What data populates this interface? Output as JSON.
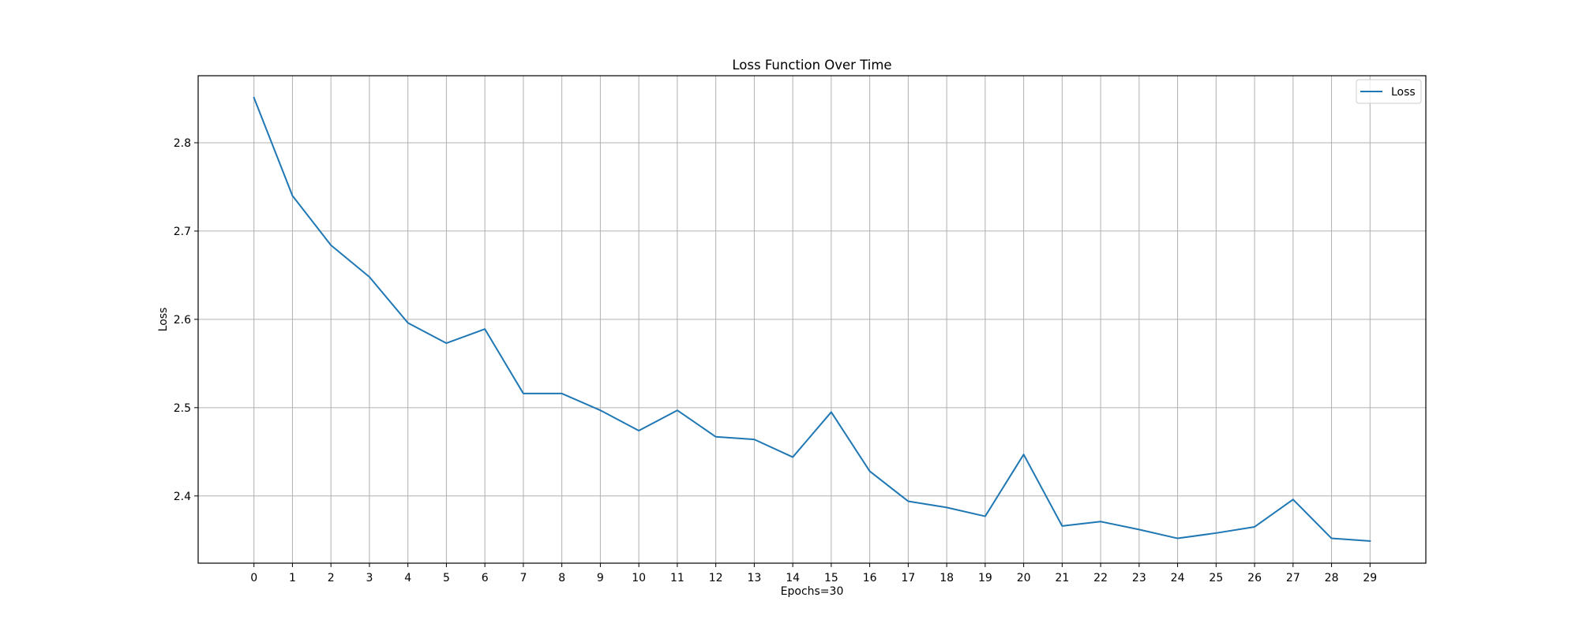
{
  "chart_data": {
    "type": "line",
    "title": "Loss Function Over Time",
    "xlabel": "Epochs=30",
    "ylabel": "Loss",
    "x": [
      0,
      1,
      2,
      3,
      4,
      5,
      6,
      7,
      8,
      9,
      10,
      11,
      12,
      13,
      14,
      15,
      16,
      17,
      18,
      19,
      20,
      21,
      22,
      23,
      24,
      25,
      26,
      27,
      28,
      29
    ],
    "series": [
      {
        "name": "Loss",
        "color": "#1f77b4",
        "values": [
          2.851,
          2.74,
          2.684,
          2.648,
          2.596,
          2.573,
          2.589,
          2.516,
          2.516,
          2.497,
          2.474,
          2.497,
          2.467,
          2.464,
          2.444,
          2.495,
          2.428,
          2.394,
          2.387,
          2.377,
          2.447,
          2.366,
          2.371,
          2.362,
          2.352,
          2.358,
          2.365,
          2.396,
          2.352,
          2.349
        ]
      }
    ],
    "xticks": [
      "0",
      "1",
      "2",
      "3",
      "4",
      "5",
      "6",
      "7",
      "8",
      "9",
      "10",
      "11",
      "12",
      "13",
      "14",
      "15",
      "16",
      "17",
      "18",
      "19",
      "20",
      "21",
      "22",
      "23",
      "24",
      "25",
      "26",
      "27",
      "28",
      "29"
    ],
    "yticks": [
      "2.4",
      "2.5",
      "2.6",
      "2.7",
      "2.8"
    ],
    "ytick_values": [
      2.4,
      2.5,
      2.6,
      2.7,
      2.8
    ],
    "xlim": [
      -1.45,
      30.45
    ],
    "ylim": [
      2.3239,
      2.8759
    ],
    "grid": true,
    "legend_position": "top-right"
  }
}
